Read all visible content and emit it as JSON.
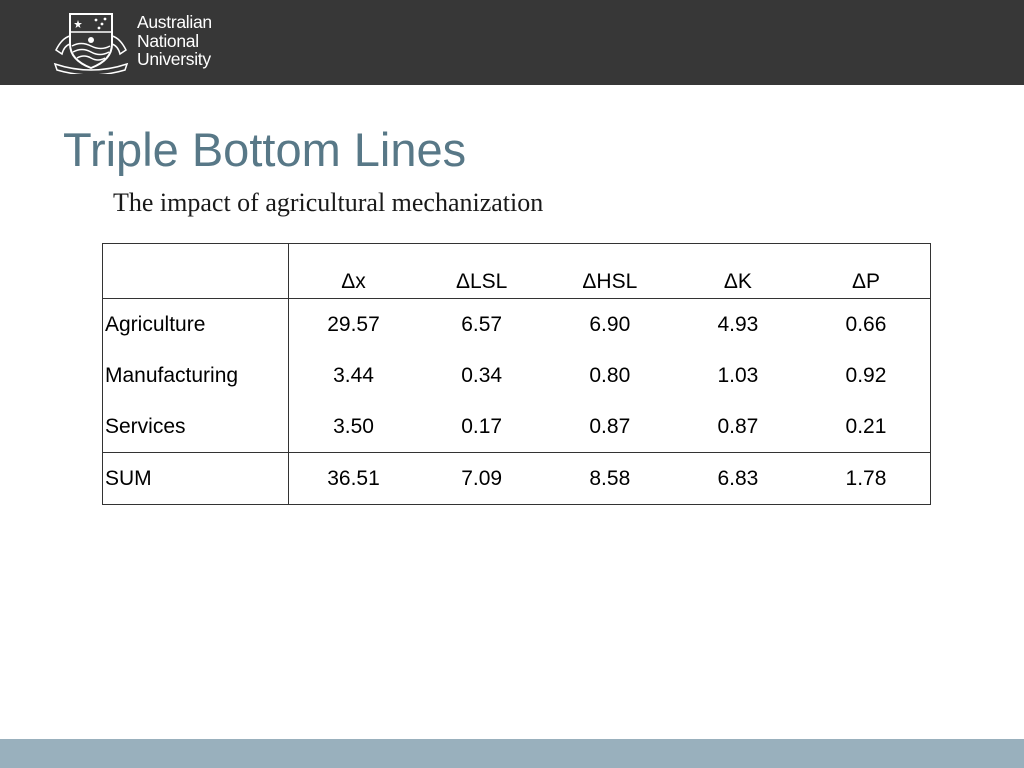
{
  "header": {
    "logo_lines": [
      "Australian",
      "National",
      "University"
    ],
    "crest_icon": "anu-crest-icon",
    "background": "#373737"
  },
  "slide": {
    "title": "Triple Bottom Lines",
    "subtitle": "The impact of agricultural mechanization",
    "title_color": "#587887"
  },
  "table": {
    "columns": [
      "",
      "Δx",
      "ΔLSL",
      "ΔHSL",
      "ΔK",
      "ΔP"
    ],
    "rows": [
      {
        "label": "Agriculture",
        "values": [
          "29.57",
          "6.57",
          "6.90",
          "4.93",
          "0.66"
        ]
      },
      {
        "label": "Manufacturing",
        "values": [
          "3.44",
          "0.34",
          "0.80",
          "1.03",
          "0.92"
        ]
      },
      {
        "label": "Services",
        "values": [
          "3.50",
          "0.17",
          "0.87",
          "0.87",
          "0.21"
        ]
      }
    ],
    "total": {
      "label": "SUM",
      "values": [
        "36.51",
        "7.09",
        "8.58",
        "6.83",
        "1.78"
      ]
    }
  },
  "footer": {
    "color": "#99b0bd"
  }
}
